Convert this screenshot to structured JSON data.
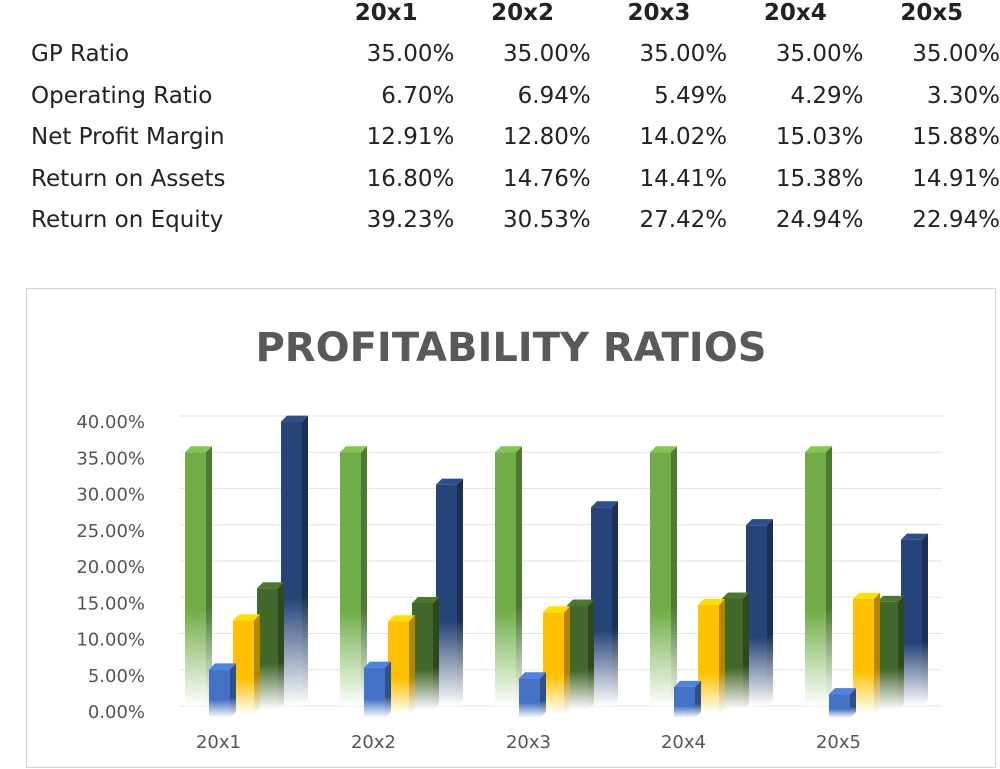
{
  "table": {
    "headers": [
      "",
      "20x1",
      "20x2",
      "20x3",
      "20x4",
      "20x5"
    ],
    "rows": [
      {
        "label": "GP Ratio",
        "values": [
          "35.00%",
          "35.00%",
          "35.00%",
          "35.00%",
          "35.00%"
        ]
      },
      {
        "label": "Operating Ratio",
        "values": [
          "6.70%",
          "6.94%",
          "5.49%",
          "4.29%",
          "3.30%"
        ]
      },
      {
        "label": "Net Profit Margin",
        "values": [
          "12.91%",
          "12.80%",
          "14.02%",
          "15.03%",
          "15.88%"
        ]
      },
      {
        "label": "Return on Assets",
        "values": [
          "16.80%",
          "14.76%",
          "14.41%",
          "15.38%",
          "14.91%"
        ]
      },
      {
        "label": "Return on Equity",
        "values": [
          "39.23%",
          "30.53%",
          "27.42%",
          "24.94%",
          "22.94%"
        ]
      }
    ]
  },
  "chart_data": {
    "type": "bar",
    "title": "PROFITABILITY RATIOS",
    "categories": [
      "20x1",
      "20x2",
      "20x3",
      "20x4",
      "20x5"
    ],
    "series": [
      {
        "name": "GP Ratio",
        "values": [
          35.0,
          35.0,
          35.0,
          35.0,
          35.0
        ],
        "color": "#70ad47"
      },
      {
        "name": "Operating Ratio",
        "values": [
          6.7,
          6.94,
          5.49,
          4.29,
          3.3
        ],
        "color": "#4472c4"
      },
      {
        "name": "Net Profit Margin",
        "values": [
          12.91,
          12.8,
          14.02,
          15.03,
          15.88
        ],
        "color": "#ffc000"
      },
      {
        "name": "Return on Assets",
        "values": [
          16.8,
          14.76,
          14.41,
          15.38,
          14.91
        ],
        "color": "#43682b"
      },
      {
        "name": "Return on Equity",
        "values": [
          39.23,
          30.53,
          27.42,
          24.94,
          22.94
        ],
        "color": "#264478"
      }
    ],
    "y_ticks": [
      "0.00%",
      "5.00%",
      "10.00%",
      "15.00%",
      "20.00%",
      "25.00%",
      "30.00%",
      "35.00%",
      "40.00%"
    ],
    "ylim": [
      0,
      40
    ],
    "grid": true,
    "legend": "none",
    "xlabel": "",
    "ylabel": ""
  }
}
